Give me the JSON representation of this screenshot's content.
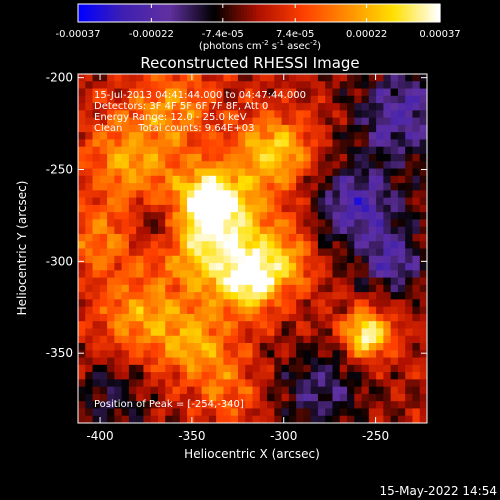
{
  "chart_data": {
    "type": "heatmap",
    "title": "Reconstructed RHESSI Image",
    "xlabel": "Heliocentric X (arcsec)",
    "ylabel": "Heliocentric Y (arcsec)",
    "xlim": [
      -412,
      -222
    ],
    "ylim": [
      -388,
      -198
    ],
    "x_ticks": [
      -400,
      -350,
      -300,
      -250
    ],
    "y_ticks": [
      -200,
      -250,
      -300,
      -350
    ],
    "x_tick_labels": [
      "-400",
      "-350",
      "-300",
      "-250"
    ],
    "y_tick_labels": [
      "-200",
      "-250",
      "-300",
      "-350"
    ],
    "colorbar": {
      "range": [
        -0.00037,
        0.00037
      ],
      "ticks": [
        -0.00037,
        -0.00022,
        -7.4e-05,
        7.4e-05,
        0.00022,
        0.00037
      ],
      "tick_labels": [
        "-0.00037",
        "-0.00022",
        "-7.4e-05",
        "7.4e-05",
        "0.00022",
        "0.00037"
      ],
      "unit_label": "(photons cm",
      "unit_sup1": "-2",
      "unit_mid": " s",
      "unit_sup2": "-1",
      "unit_end": " asec",
      "unit_sup3": "-2",
      "unit_close": ")"
    },
    "annotations": [
      "15-Jul-2013 04:41:44.000 to 04:47:44.000",
      "Detectors: 3F 4F 5F 6F 7F 8F, Att 0",
      "Energy Range: 12.0 - 25.0 keV",
      "Clean     Total counts: 9.64E+03"
    ],
    "peak": {
      "label": "Position of Peak = [-254,-340]",
      "x": -254,
      "y": -340
    },
    "grid": false,
    "legend": "none",
    "blobs": [
      {
        "x": -335,
        "y": -290,
        "amp": 0.00032,
        "sigma": 22
      },
      {
        "x": -340,
        "y": -265,
        "amp": 0.00028,
        "sigma": 12
      },
      {
        "x": -305,
        "y": -240,
        "amp": 0.00026,
        "sigma": 14
      },
      {
        "x": -318,
        "y": -312,
        "amp": 0.00024,
        "sigma": 11
      },
      {
        "x": -350,
        "y": -345,
        "amp": 0.0002,
        "sigma": 14
      },
      {
        "x": -380,
        "y": -330,
        "amp": 0.00018,
        "sigma": 15
      },
      {
        "x": -385,
        "y": -245,
        "amp": 0.00019,
        "sigma": 18
      },
      {
        "x": -360,
        "y": -215,
        "amp": 0.00016,
        "sigma": 16
      },
      {
        "x": -255,
        "y": -340,
        "amp": 0.00036,
        "sigma": 9
      },
      {
        "x": -300,
        "y": -300,
        "amp": 0.00015,
        "sigma": 12
      },
      {
        "x": -400,
        "y": -290,
        "amp": 0.00014,
        "sigma": 14
      },
      {
        "x": -330,
        "y": -370,
        "amp": 0.00013,
        "sigma": 13
      },
      {
        "x": -260,
        "y": -270,
        "amp": -0.00024,
        "sigma": 16
      },
      {
        "x": -235,
        "y": -220,
        "amp": -0.00022,
        "sigma": 18
      },
      {
        "x": -240,
        "y": -300,
        "amp": -0.0002,
        "sigma": 12
      },
      {
        "x": -280,
        "y": -370,
        "amp": -0.00016,
        "sigma": 16
      },
      {
        "x": -370,
        "y": -280,
        "amp": -0.00014,
        "sigma": 10
      },
      {
        "x": -395,
        "y": -375,
        "amp": -0.00012,
        "sigma": 14
      }
    ]
  },
  "footer": {
    "timestamp": "15-May-2022 14:54"
  },
  "colors": {
    "background": "#000000",
    "text": "#ffffff",
    "colormap": [
      "#0000ff",
      "#4020b0",
      "#6030a0",
      "#000000",
      "#b01000",
      "#ff4000",
      "#ff9000",
      "#ffe000",
      "#ffffff"
    ]
  }
}
